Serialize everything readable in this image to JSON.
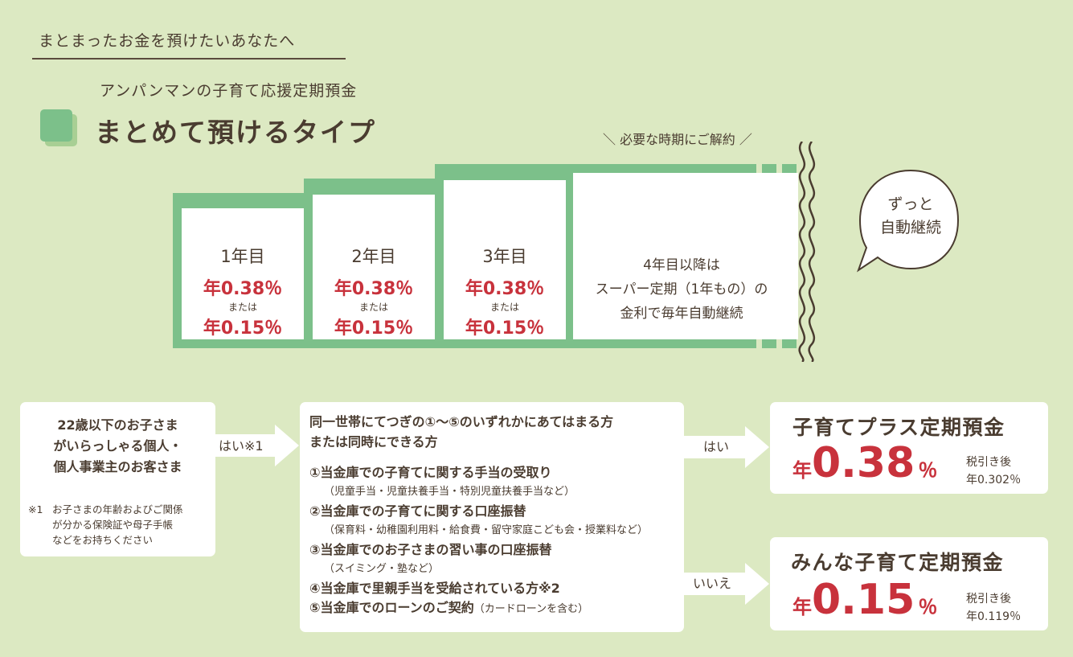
{
  "header": {
    "top_label": "まとまったお金を預けたいあなたへ",
    "subtitle": "アンパンマンの子育て応援定期預金",
    "title": "まとめて預けるタイプ"
  },
  "timeline": {
    "cancel_note": "＼ 必要な時期にご解約 ／",
    "steps": [
      {
        "label": "1年目",
        "rate_a": "年0.38％",
        "or": "または",
        "rate_b": "年0.15％"
      },
      {
        "label": "2年目",
        "rate_a": "年0.38％",
        "or": "または",
        "rate_b": "年0.15％"
      },
      {
        "label": "3年目",
        "rate_a": "年0.38％",
        "or": "または",
        "rate_b": "年0.15％"
      }
    ],
    "continuation": {
      "line1": "4年目以降は",
      "line2": "スーパー定期（1年もの）の",
      "line3": "金利で毎年自動継続"
    },
    "bubble": {
      "line1": "ずっと",
      "line2": "自動継続"
    }
  },
  "eligibility": {
    "line1": "22歳以下のお子さま",
    "line2": "がいらっしゃる個人・",
    "line3": "個人事業主のお客さま",
    "note_mark": "※1",
    "note1": "お子さまの年齢およびご関係",
    "note2": "が分かる保険証や母子手帳",
    "note3": "などをお持ちください",
    "arrow_label": "はい※1"
  },
  "conditions": {
    "title1": "同一世帯にてつぎの①～⑤のいずれかにあてはまる方",
    "title2": "または同時にできる方",
    "items": [
      {
        "main": "①当金庫での子育てに関する手当の受取り",
        "sub": "（児童手当・児童扶養手当・特別児童扶養手当など）"
      },
      {
        "main": "②当金庫での子育てに関する口座振替",
        "sub": "（保育料・幼稚園利用料・給食費・留守家庭こども会・授業料など）"
      },
      {
        "main": "③当金庫でのお子さまの習い事の口座振替",
        "sub": "（スイミング・塾など）"
      },
      {
        "main": "④当金庫で里親手当を受給されている方※2",
        "sub": ""
      },
      {
        "main": "⑤当金庫でのローンのご契約",
        "sub": "（カードローンを含む）"
      }
    ],
    "yes_label": "はい",
    "no_label": "いいえ"
  },
  "products": [
    {
      "name": "子育てプラス定期預金",
      "nen": "年",
      "rate": "0.38",
      "pct": "％",
      "tax_label": "税引き後",
      "tax_rate": "年0.302％"
    },
    {
      "name": "みんな子育て定期預金",
      "nen": "年",
      "rate": "0.15",
      "pct": "％",
      "tax_label": "税引き後",
      "tax_rate": "年0.119％"
    }
  ],
  "colors": {
    "background": "#dce9c2",
    "green": "#7cc08a",
    "red": "#c8323c",
    "text": "#4a3c30"
  }
}
